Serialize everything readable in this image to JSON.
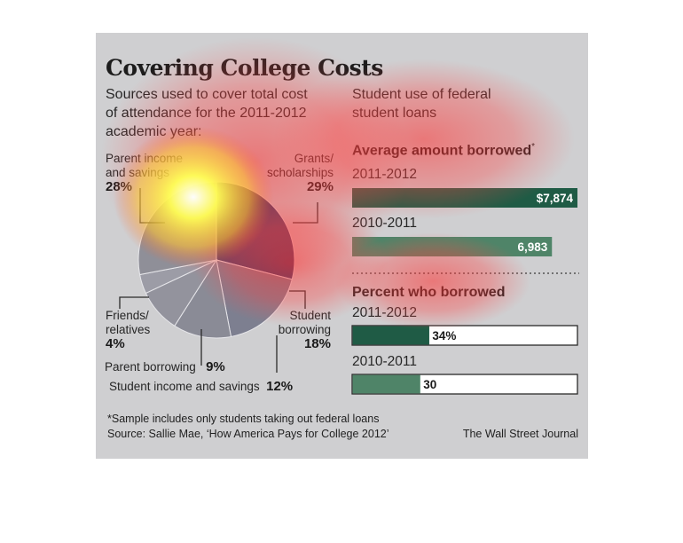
{
  "title": "Covering College Costs",
  "left_subtitle": [
    "Sources used to cover total cost",
    "of attendance for the 2011-2012",
    "academic year:"
  ],
  "right_subtitle": [
    "Student use of federal",
    "student loans"
  ],
  "avg_header": "Average amount borrowed",
  "avg_header_mark": "*",
  "pct_header": "Percent who borrowed",
  "colors": {
    "dark_green": "#1f5b45",
    "light_green": "#4f8468",
    "pie_slate": "#2f3f6b",
    "heat_red": "#ff3a3a",
    "heat_yellow": "#ffff66"
  },
  "chart_data": [
    {
      "type": "pie",
      "title": "Sources used to cover total cost of attendance for the 2011-2012 academic year:",
      "slices": [
        {
          "label": "Grants/ scholarships",
          "line1": "Grants/",
          "line2": "scholarships",
          "value": 29,
          "display": "29%"
        },
        {
          "label": "Student borrowing",
          "line1": "Student",
          "line2": "borrowing",
          "value": 18,
          "display": "18%"
        },
        {
          "label": "Student income and savings",
          "line1": "Student income and savings",
          "line2": "",
          "value": 12,
          "display": "12%"
        },
        {
          "label": "Parent borrowing",
          "line1": "Parent borrowing",
          "line2": "",
          "value": 9,
          "display": "9%"
        },
        {
          "label": "Friends/ relatives",
          "line1": "Friends/",
          "line2": "relatives",
          "value": 4,
          "display": "4%"
        },
        {
          "label": "Parent income and savings",
          "line1": "Parent income",
          "line2": "and savings",
          "value": 28,
          "display": "28%"
        }
      ]
    },
    {
      "type": "bar",
      "title": "Average amount borrowed*",
      "categories": [
        "2011-2012",
        "2010-2011"
      ],
      "values": [
        7874,
        6983
      ],
      "value_labels": [
        "$7,874",
        "6,983"
      ],
      "xlim": [
        0,
        7874
      ]
    },
    {
      "type": "bar",
      "title": "Percent who borrowed",
      "categories": [
        "2011-2012",
        "2010-2011"
      ],
      "values": [
        34,
        30
      ],
      "value_labels": [
        "34%",
        "30"
      ],
      "xlim": [
        0,
        100
      ]
    }
  ],
  "footnote": "*Sample includes only students taking out federal loans",
  "source": "Source: Sallie Mae, ‘How America Pays for College 2012’",
  "credit": "The Wall Street Journal"
}
